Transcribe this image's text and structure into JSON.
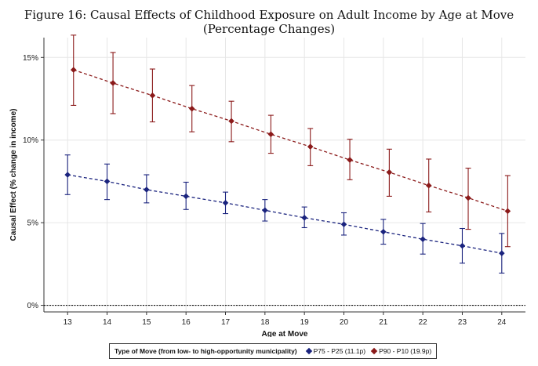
{
  "title": "Figure 16: Causal Effects of Childhood Exposure on Adult Income by Age at Move (Percentage Changes)",
  "chart_data": {
    "type": "scatter",
    "xlabel": "Age at Move",
    "ylabel": "Causal Effect (% change in income)",
    "xlim": [
      12.4,
      24.6
    ],
    "ylim": [
      -0.4,
      16.2
    ],
    "x_ticks": [
      13,
      14,
      15,
      16,
      17,
      18,
      19,
      20,
      21,
      22,
      23,
      24
    ],
    "y_ticks": [
      0,
      5,
      10,
      15
    ],
    "y_tick_labels": [
      "0%",
      "5%",
      "10%",
      "15%"
    ],
    "reference_line_y": 0,
    "legend_title": "Type of Move (from low- to high-opportunity municipality)",
    "legend_position": "bottom",
    "series": [
      {
        "name": "P75 - P25 (11.1p)",
        "color": "#1a237e",
        "x": [
          13,
          14,
          15,
          16,
          17,
          18,
          19,
          20,
          21,
          22,
          23,
          24
        ],
        "y": [
          7.9,
          7.5,
          7.0,
          6.6,
          6.2,
          5.75,
          5.3,
          4.9,
          4.45,
          4.0,
          3.6,
          3.15
        ],
        "lower": [
          6.7,
          6.4,
          6.2,
          5.8,
          5.55,
          5.1,
          4.7,
          4.25,
          3.7,
          3.1,
          2.55,
          1.95
        ],
        "upper": [
          9.1,
          8.55,
          7.9,
          7.45,
          6.85,
          6.4,
          5.95,
          5.6,
          5.2,
          4.95,
          4.65,
          4.35
        ]
      },
      {
        "name": "P90 - P10 (19.9p)",
        "color": "#8b1a1a",
        "x": [
          13.15,
          14.15,
          15.15,
          16.15,
          17.15,
          18.15,
          19.15,
          20.15,
          21.15,
          22.15,
          23.15,
          24.15
        ],
        "y": [
          14.25,
          13.45,
          12.7,
          11.9,
          11.15,
          10.35,
          9.6,
          8.8,
          8.05,
          7.25,
          6.5,
          5.7
        ],
        "lower": [
          12.1,
          11.6,
          11.1,
          10.5,
          9.9,
          9.2,
          8.45,
          7.6,
          6.6,
          5.65,
          4.6,
          3.55
        ],
        "upper": [
          16.35,
          15.3,
          14.3,
          13.3,
          12.35,
          11.5,
          10.7,
          10.05,
          9.45,
          8.85,
          8.3,
          7.85
        ]
      }
    ]
  }
}
